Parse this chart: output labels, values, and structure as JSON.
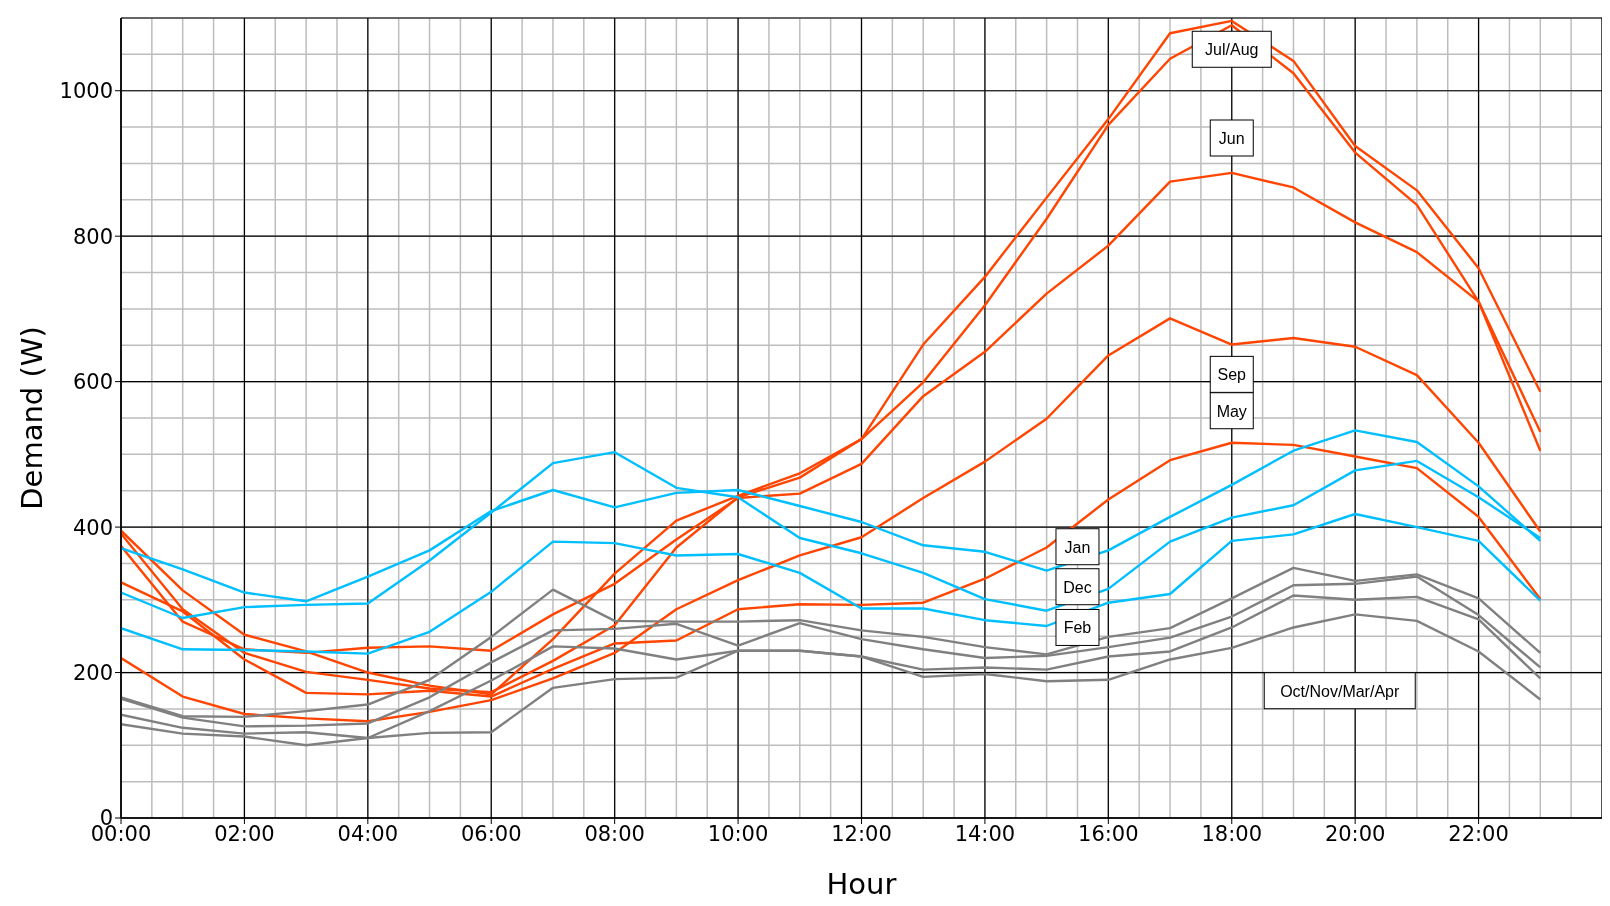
{
  "chart_data": {
    "type": "line",
    "xlabel": "Hour",
    "ylabel": "Demand (W)",
    "x": [
      0,
      1,
      2,
      3,
      4,
      5,
      6,
      7,
      8,
      9,
      10,
      11,
      12,
      13,
      14,
      15,
      16,
      17,
      18,
      19,
      20,
      21,
      22,
      23
    ],
    "series": [
      {
        "color": "#ff4500",
        "values": [
          395,
          313,
          252,
          229,
          200,
          182,
          170,
          246,
          336,
          409,
          443,
          474,
          521,
          651,
          744,
          853,
          961,
          1079,
          1096,
          1041,
          924,
          863,
          756,
          586
        ]
      },
      {
        "color": "#ff4500",
        "values": [
          391,
          287,
          227,
          201,
          190,
          178,
          173,
          216,
          265,
          372,
          441,
          468,
          521,
          599,
          705,
          824,
          953,
          1044,
          1090,
          1024,
          915,
          843,
          710,
          531
        ]
      },
      {
        "color": "#ff4500",
        "values": [
          374,
          270,
          232,
          227,
          234,
          236,
          230,
          280,
          322,
          383,
          440,
          446,
          487,
          580,
          641,
          721,
          787,
          875,
          887,
          867,
          819,
          778,
          710,
          505
        ]
      },
      {
        "color": "#ff4500",
        "values": [
          220,
          167,
          143,
          137,
          133,
          146,
          162,
          192,
          227,
          287,
          327,
          361,
          386,
          440,
          490,
          549,
          636,
          687,
          651,
          660,
          648,
          609,
          516,
          394
        ]
      },
      {
        "color": "#ff4500",
        "values": [
          324,
          284,
          218,
          172,
          170,
          175,
          167,
          205,
          240,
          244,
          287,
          294,
          293,
          296,
          329,
          372,
          438,
          492,
          516,
          513,
          497,
          481,
          414,
          301
        ]
      },
      {
        "color": "#00bfff",
        "values": [
          371,
          342,
          310,
          298,
          332,
          368,
          422,
          451,
          427,
          447,
          451,
          429,
          407,
          375,
          366,
          340,
          368,
          414,
          458,
          505,
          533,
          517,
          456,
          381
        ]
      },
      {
        "color": "#00bfff",
        "values": [
          310,
          275,
          290,
          293,
          295,
          354,
          420,
          488,
          503,
          454,
          441,
          385,
          364,
          337,
          301,
          285,
          315,
          380,
          413,
          430,
          478,
          491,
          441,
          385
        ]
      },
      {
        "color": "#00bfff",
        "values": [
          261,
          232,
          231,
          229,
          226,
          256,
          311,
          380,
          378,
          361,
          363,
          337,
          288,
          288,
          272,
          264,
          296,
          308,
          381,
          390,
          418,
          400,
          381,
          299
        ]
      },
      {
        "color": "#808080",
        "values": [
          166,
          140,
          139,
          147,
          156,
          190,
          249,
          314,
          271,
          270,
          270,
          272,
          258,
          249,
          235,
          225,
          249,
          261,
          302,
          344,
          326,
          335,
          302,
          227
        ]
      },
      {
        "color": "#808080",
        "values": [
          164,
          138,
          126,
          127,
          130,
          166,
          214,
          258,
          260,
          267,
          237,
          268,
          246,
          232,
          220,
          223,
          235,
          248,
          277,
          320,
          322,
          332,
          279,
          207
        ]
      },
      {
        "color": "#808080",
        "values": [
          142,
          124,
          116,
          118,
          110,
          147,
          189,
          236,
          233,
          218,
          230,
          230,
          222,
          204,
          207,
          204,
          222,
          229,
          262,
          306,
          300,
          304,
          273,
          192
        ]
      },
      {
        "color": "#808080",
        "values": [
          129,
          116,
          112,
          100,
          110,
          117,
          118,
          179,
          191,
          193,
          230,
          230,
          222,
          194,
          198,
          188,
          190,
          218,
          234,
          262,
          280,
          271,
          229,
          163
        ]
      }
    ],
    "xlim": [
      0,
      24
    ],
    "xticks": [
      {
        "value": 0,
        "label": "00:00"
      },
      {
        "value": 2,
        "label": "02:00"
      },
      {
        "value": 4,
        "label": "04:00"
      },
      {
        "value": 6,
        "label": "06:00"
      },
      {
        "value": 8,
        "label": "08:00"
      },
      {
        "value": 10,
        "label": "10:00"
      },
      {
        "value": 12,
        "label": "12:00"
      },
      {
        "value": 14,
        "label": "14:00"
      },
      {
        "value": 16,
        "label": "16:00"
      },
      {
        "value": 18,
        "label": "18:00"
      },
      {
        "value": 20,
        "label": "20:00"
      },
      {
        "value": 22,
        "label": "22:00"
      }
    ],
    "ylim": [
      0,
      1100
    ],
    "yticks": [
      0,
      200,
      400,
      600,
      800,
      1000
    ],
    "grid": true,
    "annotations": [
      "Jul/Aug",
      "Jun",
      "Sep",
      "May",
      "Jan",
      "Dec",
      "Feb",
      "Oct/Nov/Mar/Apr"
    ]
  }
}
